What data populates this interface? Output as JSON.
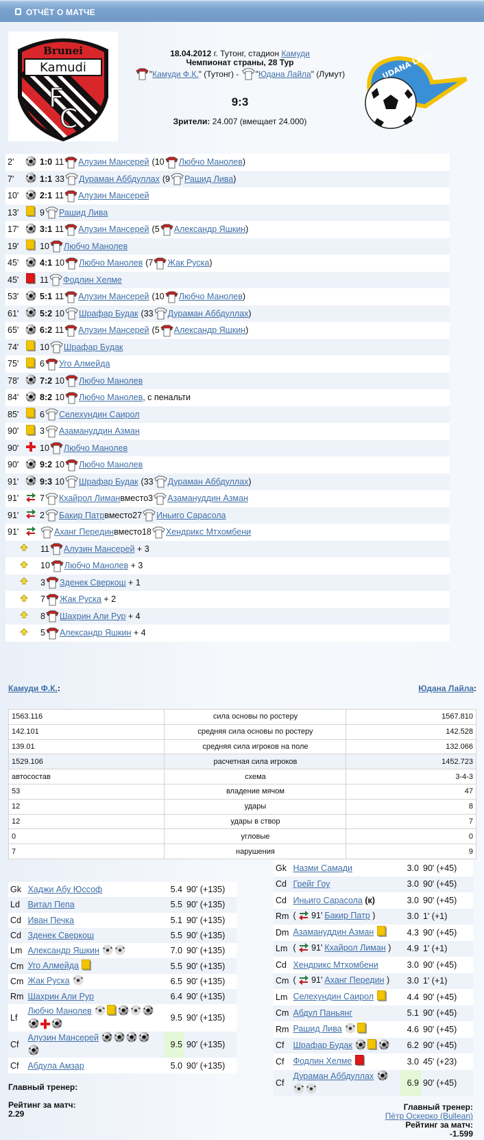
{
  "header": {
    "title": "ОТЧЁТ О МАТЧЕ",
    "icon": "report-icon"
  },
  "match": {
    "date": "18.04.2012",
    "city_text": " г. Тутонг, стадион ",
    "stadium": "Камуди",
    "tournament": "Чемпионат страны, 28 Тур",
    "home": {
      "name": "Камуди Ф.К.",
      "city": "(Тутонг)",
      "logo_text": [
        "Brunei",
        "Kamudi",
        "FC"
      ],
      "colors": {
        "primary": "#d42a2a",
        "secondary": "#000000"
      }
    },
    "away": {
      "name": "Юдана Лайла",
      "city": "(Лумут)",
      "logo_text": "UDANA LAILA",
      "colors": {
        "primary": "#f2c200",
        "secondary": "#3b8fd6"
      }
    },
    "separator": " - ",
    "score": "9:3",
    "attendance_label": "Зрители:",
    "attendance": " 24.007 (вмещает 24.000)"
  },
  "events": [
    {
      "min": "2'",
      "icon": "goal",
      "score": "1:0",
      "num": "11",
      "shirt": "home",
      "player": "Алузин Мансерей",
      "assist": {
        "num": "10",
        "shirt": "home",
        "player": "Любчо Манолев"
      }
    },
    {
      "min": "7'",
      "icon": "goal",
      "score": "1:1",
      "num": "33",
      "shirt": "away",
      "player": "Дураман Аббдуллах",
      "assist": {
        "num": "9",
        "shirt": "away",
        "player": "Рашид Лива"
      }
    },
    {
      "min": "10'",
      "icon": "goal",
      "score": "2:1",
      "num": "11",
      "shirt": "home",
      "player": "Алузин Мансерей"
    },
    {
      "min": "13'",
      "icon": "yellow",
      "num": "9",
      "shirt": "away",
      "player": "Рашид Лива"
    },
    {
      "min": "17'",
      "icon": "goal",
      "score": "3:1",
      "num": "11",
      "shirt": "home",
      "player": "Алузин Мансерей",
      "assist": {
        "num": "5",
        "shirt": "home",
        "player": "Александр Яшкин"
      }
    },
    {
      "min": "19'",
      "icon": "yellow",
      "num": "10",
      "shirt": "home",
      "player": "Любчо Манолев"
    },
    {
      "min": "45'",
      "icon": "goal",
      "score": "4:1",
      "num": "10",
      "shirt": "home",
      "player": "Любчо Манолев",
      "assist": {
        "num": "7",
        "shirt": "home",
        "player": "Жак Руска"
      }
    },
    {
      "min": "45'",
      "icon": "red",
      "num": "11",
      "shirt": "away",
      "player": "Фодлин Хелме"
    },
    {
      "min": "53'",
      "icon": "goal",
      "score": "5:1",
      "num": "11",
      "shirt": "home",
      "player": "Алузин Мансерей",
      "assist": {
        "num": "10",
        "shirt": "home",
        "player": "Любчо Манолев"
      }
    },
    {
      "min": "61'",
      "icon": "goal",
      "score": "5:2",
      "num": "10",
      "shirt": "away",
      "player": "Шрафар Будак",
      "assist": {
        "num": "33",
        "shirt": "away",
        "player": "Дураман Аббдуллах"
      }
    },
    {
      "min": "65'",
      "icon": "goal",
      "score": "6:2",
      "num": "11",
      "shirt": "home",
      "player": "Алузин Мансерей",
      "assist": {
        "num": "5",
        "shirt": "home",
        "player": "Александр Яшкин"
      }
    },
    {
      "min": "74'",
      "icon": "yellow",
      "num": "10",
      "shirt": "away",
      "player": "Шрафар Будак"
    },
    {
      "min": "75'",
      "icon": "yellow",
      "num": "6",
      "shirt": "home",
      "player": "Уго Алмейда"
    },
    {
      "min": "78'",
      "icon": "goal",
      "score": "7:2",
      "num": "10",
      "shirt": "home",
      "player": "Любчо Манолев"
    },
    {
      "min": "84'",
      "icon": "goal",
      "score": "8:2",
      "num": "10",
      "shirt": "home",
      "player": "Любчо Манолев",
      "suffix": ", с пенальти"
    },
    {
      "min": "85'",
      "icon": "yellow",
      "num": "6",
      "shirt": "away",
      "player": "Селехундин Саирол"
    },
    {
      "min": "90'",
      "icon": "yellow",
      "num": "3",
      "shirt": "away",
      "player": "Азамануддин Азман"
    },
    {
      "min": "90'",
      "icon": "injury",
      "num": "10",
      "shirt": "home",
      "player": "Любчо Манолев"
    },
    {
      "min": "90'",
      "icon": "goal",
      "score": "9:2",
      "num": "10",
      "shirt": "home",
      "player": "Любчо Манолев"
    },
    {
      "min": "91'",
      "icon": "goal",
      "score": "9:3",
      "num": "10",
      "shirt": "away",
      "player": "Шрафар Будак",
      "assist": {
        "num": "33",
        "shirt": "away",
        "player": "Дураман Аббдуллах"
      }
    },
    {
      "min": "91'",
      "icon": "sub",
      "num": "7",
      "shirt": "away",
      "player": "Кхайрол Лиман",
      "replaced": {
        "num": "3",
        "shirt": "away",
        "player": "Азамануддин Азман"
      }
    },
    {
      "min": "91'",
      "icon": "sub",
      "num": "2",
      "shirt": "away",
      "player": "Бакир Патр",
      "replaced": {
        "num": "27",
        "shirt": "away",
        "player": "Иньиго Сарасола"
      }
    },
    {
      "min": "91'",
      "icon": "sub",
      "shirt": "away",
      "player": "Аханг Передин",
      "replaced": {
        "num": "18",
        "shirt": "away",
        "player": "Хендрикс Мтхомбени"
      }
    },
    {
      "icon": "bonus",
      "num": "11",
      "shirt": "home",
      "player": "Алузин Мансерей",
      "suffix": " + 3"
    },
    {
      "icon": "bonus",
      "num": "10",
      "shirt": "home",
      "player": "Любчо Манолев",
      "suffix": " + 3"
    },
    {
      "icon": "bonus",
      "num": "3",
      "shirt": "home",
      "player": "Зденек Сверкош",
      "suffix": " + 1"
    },
    {
      "icon": "bonus",
      "num": "7",
      "shirt": "home",
      "player": "Жак Руска",
      "suffix": " + 2"
    },
    {
      "icon": "bonus",
      "num": "8",
      "shirt": "home",
      "player": "Шахрин Али Рур",
      "suffix": " + 4"
    },
    {
      "icon": "bonus",
      "num": "5",
      "shirt": "home",
      "player": "Александр Яшкин",
      "suffix": " + 4"
    }
  ],
  "labels": {
    "instead": " вместо ",
    "open": "(",
    "close": ")",
    "coach": "Главный тренер:",
    "rating": "Рейтинг за матч:",
    "captain": "(к)"
  },
  "stats": [
    [
      "1563.116",
      "сила основы по ростеру",
      "1567.810"
    ],
    [
      "142.101",
      "средняя сила основы по ростеру",
      "142.528"
    ],
    [
      "139.01",
      "средняя сила игроков на поле",
      "132.066"
    ],
    [
      "1529.106",
      "расчетная сила игроков",
      "1452.723"
    ],
    [
      "автосостав",
      "схема",
      "3-4-3"
    ],
    [
      "53",
      "владение мячом",
      "47"
    ],
    [
      "12",
      "удары",
      "8"
    ],
    [
      "12",
      "удары в створ",
      "7"
    ],
    [
      "0",
      "угловые",
      "0"
    ],
    [
      "7",
      "нарушения",
      "9"
    ]
  ],
  "home_lineup": [
    {
      "pos": "Gk",
      "name": "Хаджи Абу Юссоф",
      "icons": [],
      "rating": "5.4",
      "time": "90' (+135)"
    },
    {
      "pos": "Ld",
      "name": "Витал Пепа",
      "icons": [],
      "rating": "5.5",
      "time": "90' (+135)"
    },
    {
      "pos": "Cd",
      "name": "Иван Печка",
      "icons": [],
      "rating": "5.1",
      "time": "90' (+135)"
    },
    {
      "pos": "Cd",
      "name": "Зденек Сверкош",
      "icons": [],
      "rating": "5.5",
      "time": "90' (+135)"
    },
    {
      "pos": "Lm",
      "name": "Александр Яшкин",
      "icons": [
        "assist",
        "assist"
      ],
      "rating": "7.0",
      "time": "90' (+135)"
    },
    {
      "pos": "Cm",
      "name": "Уго Алмейда",
      "icons": [
        "yellow"
      ],
      "rating": "5.5",
      "time": "90' (+135)"
    },
    {
      "pos": "Cm",
      "name": "Жак Руска",
      "icons": [
        "assist"
      ],
      "rating": "6.5",
      "time": "90' (+135)"
    },
    {
      "pos": "Rm",
      "name": "Шахрин Али Рур",
      "icons": [],
      "rating": "6.4",
      "time": "90' (+135)"
    },
    {
      "pos": "Lf",
      "name": "Любчо Манолев",
      "icons": [
        "assist",
        "yellow",
        "goal",
        "assist",
        "goal",
        "goal",
        "injury",
        "goal"
      ],
      "rating": "9.5",
      "time": "90' (+135)"
    },
    {
      "pos": "Cf",
      "name": "Алузин Мансерей",
      "icons": [
        "goal",
        "goal",
        "goal",
        "goal",
        "goal"
      ],
      "rating": "9.5",
      "best": true,
      "time": "90' (+135)"
    },
    {
      "pos": "Cf",
      "name": "Абдула Амзар",
      "icons": [],
      "rating": "5.0",
      "time": "90' (+135)"
    }
  ],
  "away_lineup": [
    {
      "pos": "Gk",
      "name": "Назми Самади",
      "icons": [],
      "rating": "3.0",
      "time": "90' (+45)"
    },
    {
      "pos": "Cd",
      "name": "Грейг Гоу",
      "icons": [],
      "rating": "3.0",
      "time": "90' (+45)"
    },
    {
      "pos": "Cd",
      "name": "Иньиго Сарасола",
      "captain": true,
      "icons": [],
      "rating": "3.0",
      "time": "90' (+45)"
    },
    {
      "pos": "Rm",
      "name": "Бакир Патр",
      "sub_min": "91'",
      "icons": [],
      "rating": "3.0",
      "time": "1' (+1)"
    },
    {
      "pos": "Dm",
      "name": "Азамануддин Азман",
      "icons": [
        "yellow"
      ],
      "rating": "4.3",
      "time": "90' (+45)"
    },
    {
      "pos": "Lm",
      "name": "Кхайрол Лиман",
      "sub_min": "91'",
      "icons": [],
      "rating": "4.9",
      "time": "1' (+1)"
    },
    {
      "pos": "Cd",
      "name": "Хендрикс Мтхомбени",
      "icons": [],
      "rating": "3.0",
      "time": "90' (+45)"
    },
    {
      "pos": "Cm",
      "name": "Аханг Передин",
      "sub_min": "91'",
      "icons": [],
      "rating": "3.0",
      "time": "1' (+1)"
    },
    {
      "pos": "Lm",
      "name": "Селехундин Саирол",
      "icons": [
        "yellow"
      ],
      "rating": "4.4",
      "time": "90' (+45)"
    },
    {
      "pos": "Cm",
      "name": "Абдул Паньянг",
      "icons": [],
      "rating": "5.1",
      "time": "90' (+45)"
    },
    {
      "pos": "Rm",
      "name": "Рашид Лива",
      "icons": [
        "assist",
        "yellow"
      ],
      "rating": "4.6",
      "time": "90' (+45)"
    },
    {
      "pos": "Cf",
      "name": "Шрафар Будак",
      "icons": [
        "goal",
        "yellow",
        "goal"
      ],
      "rating": "6.2",
      "time": "90' (+45)"
    },
    {
      "pos": "Cf",
      "name": "Фодлин Хелме",
      "icons": [
        "red"
      ],
      "rating": "3.0",
      "time": "45' (+23)"
    },
    {
      "pos": "Cf",
      "name": "Дураман Аббдуллах",
      "icons": [
        "goal",
        "assist",
        "assist"
      ],
      "rating": "6.9",
      "best": true,
      "time": "90' (+45)"
    }
  ],
  "home_footer": {
    "rating": "2.29"
  },
  "away_footer": {
    "coach": "Пётр Оскерко (Bullean)",
    "rating": "-1.599"
  }
}
